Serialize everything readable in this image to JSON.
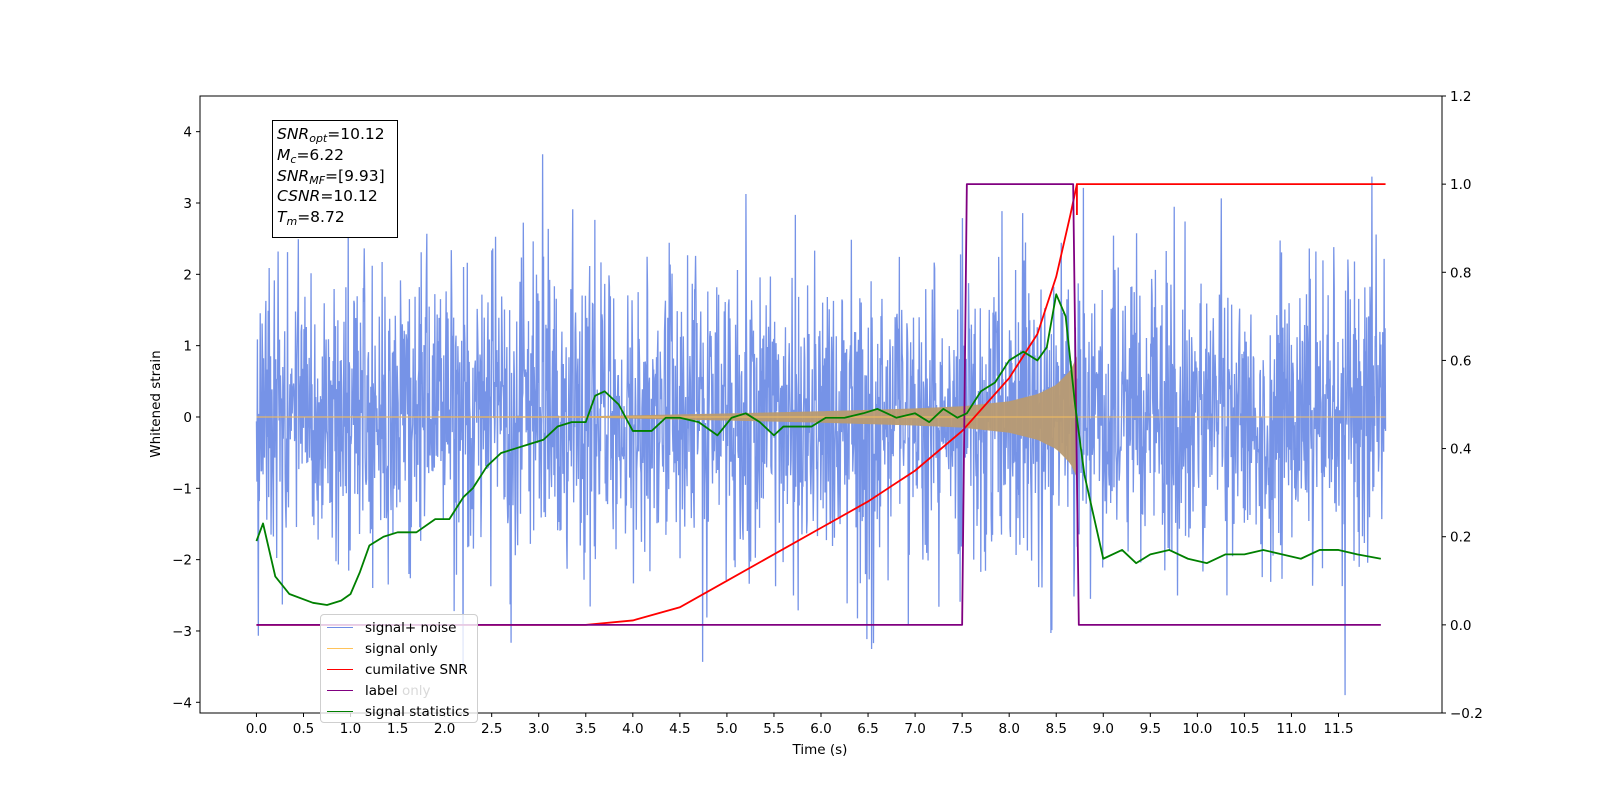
{
  "chart_data": {
    "type": "line",
    "xlabel": "Time (s)",
    "ylabel": "Whitened strain",
    "xlim": [
      -0.6,
      12.6
    ],
    "ylim": [
      -4.15,
      4.5
    ],
    "y2lim": [
      -0.2,
      1.2
    ],
    "x_ticks": [
      "0.0",
      "0.5",
      "1.0",
      "1.5",
      "2.0",
      "2.5",
      "3.0",
      "3.5",
      "4.0",
      "4.5",
      "5.0",
      "5.5",
      "6.0",
      "6.5",
      "7.0",
      "7.5",
      "8.0",
      "8.5",
      "9.0",
      "9.5",
      "10.0",
      "10.5",
      "11.0",
      "11.5"
    ],
    "y_ticks": [
      "4",
      "3",
      "2",
      "1",
      "0",
      "−1",
      "−2",
      "−3",
      "−4"
    ],
    "y2_ticks": [
      "1.2",
      "1.0",
      "0.8",
      "0.6",
      "0.4",
      "0.2",
      "0.0",
      "−0.2"
    ],
    "annotation": {
      "snr_opt": {
        "base": "SNR",
        "sub": "opt",
        "value": "=10.12"
      },
      "mc": {
        "base": "M",
        "sub": "c",
        "value": "=6.22"
      },
      "snr_mf": {
        "base": "SNR",
        "sub": "MF",
        "value": "=[9.93]"
      },
      "csnr": {
        "base": "CSNR",
        "value": "=10.12"
      },
      "tm": {
        "base": "T",
        "sub": "m",
        "value": "=8.72"
      }
    },
    "legend": [
      {
        "label": "signal+ noise",
        "color": "#6f8de6"
      },
      {
        "label": "signal only",
        "color": "#ffc35a"
      },
      {
        "label": "cumilative SNR",
        "color": "#ff0000"
      },
      {
        "label": "label",
        "color": "#800080"
      },
      {
        "label": "signal statistics",
        "color": "#008000"
      }
    ],
    "legend_hidden_text": "label only",
    "series": [
      {
        "name": "signal+ noise",
        "axis": "left",
        "description": "whitened noisy strain, roughly N(0,1) over 0-12 s",
        "sigma": 1.0,
        "t_range": [
          0,
          12
        ]
      },
      {
        "name": "signal only",
        "axis": "left",
        "description": "chirp envelope growing toward merger",
        "envelope": {
          "t": [
            0,
            3.5,
            5.0,
            6.0,
            7.0,
            7.5,
            8.0,
            8.3,
            8.5,
            8.65,
            8.72
          ],
          "amp": [
            0.005,
            0.01,
            0.05,
            0.08,
            0.12,
            0.15,
            0.22,
            0.32,
            0.45,
            0.65,
            0.85
          ]
        }
      },
      {
        "name": "cumilative SNR",
        "axis": "right",
        "x": [
          0,
          3.5,
          4.0,
          4.5,
          5.0,
          5.5,
          6.0,
          6.5,
          7.0,
          7.5,
          8.0,
          8.3,
          8.5,
          8.65,
          8.72,
          12.0
        ],
        "y": [
          0,
          0.0,
          0.01,
          0.04,
          0.1,
          0.16,
          0.22,
          0.28,
          0.35,
          0.44,
          0.56,
          0.66,
          0.79,
          0.93,
          1.0,
          1.0
        ]
      },
      {
        "name": "label",
        "axis": "right",
        "x": [
          0,
          7.5,
          7.55,
          8.68,
          8.74,
          11.95
        ],
        "y": [
          0,
          0,
          1,
          1,
          0,
          0
        ]
      },
      {
        "name": "signal statistics",
        "axis": "right",
        "x": [
          0,
          0.07,
          0.2,
          0.35,
          0.6,
          0.75,
          0.9,
          1.0,
          1.1,
          1.2,
          1.35,
          1.5,
          1.7,
          1.9,
          2.05,
          2.2,
          2.3,
          2.45,
          2.6,
          2.75,
          2.9,
          3.05,
          3.2,
          3.35,
          3.5,
          3.6,
          3.7,
          3.85,
          4.0,
          4.2,
          4.35,
          4.5,
          4.7,
          4.9,
          5.05,
          5.2,
          5.35,
          5.5,
          5.6,
          5.75,
          5.9,
          6.05,
          6.25,
          6.45,
          6.6,
          6.8,
          7.0,
          7.15,
          7.3,
          7.45,
          7.55,
          7.7,
          7.85,
          8.0,
          8.15,
          8.3,
          8.4,
          8.5,
          8.6,
          8.7,
          8.8,
          9.0,
          9.2,
          9.35,
          9.5,
          9.7,
          9.9,
          10.1,
          10.3,
          10.5,
          10.7,
          10.9,
          11.1,
          11.3,
          11.5,
          11.7,
          11.95
        ],
        "y": [
          0.19,
          0.23,
          0.11,
          0.07,
          0.05,
          0.045,
          0.055,
          0.07,
          0.12,
          0.18,
          0.2,
          0.21,
          0.21,
          0.24,
          0.24,
          0.29,
          0.31,
          0.36,
          0.39,
          0.4,
          0.41,
          0.42,
          0.45,
          0.46,
          0.46,
          0.52,
          0.53,
          0.5,
          0.44,
          0.44,
          0.47,
          0.47,
          0.46,
          0.43,
          0.47,
          0.48,
          0.46,
          0.43,
          0.45,
          0.45,
          0.45,
          0.47,
          0.47,
          0.48,
          0.49,
          0.47,
          0.48,
          0.46,
          0.49,
          0.47,
          0.48,
          0.53,
          0.55,
          0.6,
          0.62,
          0.6,
          0.63,
          0.75,
          0.7,
          0.5,
          0.34,
          0.15,
          0.17,
          0.14,
          0.16,
          0.17,
          0.15,
          0.14,
          0.16,
          0.16,
          0.17,
          0.16,
          0.15,
          0.17,
          0.17,
          0.16,
          0.15
        ]
      }
    ]
  }
}
